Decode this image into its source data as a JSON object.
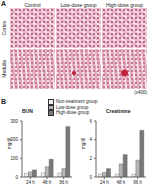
{
  "panel_a": {
    "label": "A",
    "columns": [
      "Control",
      "Low-dose group",
      "High-dose group"
    ],
    "rows": [
      "Cortex",
      "Medulla"
    ],
    "magnification": "(x400)"
  },
  "panel_b_label": "B",
  "chart_data": [
    {
      "type": "bar",
      "title": "BUN",
      "y_label": "mg/dl",
      "categories": [
        "24 h",
        "48 h",
        "96 h"
      ],
      "series": [
        {
          "name": "Non-treatment group",
          "color": "#eeeeee",
          "values": [
            20,
            22,
            21
          ]
        },
        {
          "name": "Low-dose group",
          "color": "#b5b5b5",
          "values": [
            28,
            55,
            45
          ]
        },
        {
          "name": "High-dose group",
          "color": "#7a7a7a",
          "values": [
            38,
            95,
            270
          ]
        }
      ],
      "ylim": [
        0,
        300
      ],
      "yticks": [
        0,
        100,
        200,
        300
      ]
    },
    {
      "type": "bar",
      "title": "Creatinine",
      "y_label": "mg/dl",
      "categories": [
        "24 h",
        "48 h",
        "96 h"
      ],
      "series": [
        {
          "name": "Non-treatment group",
          "color": "#eeeeee",
          "values": [
            0.3,
            0.3,
            0.3
          ]
        },
        {
          "name": "Low-dose group",
          "color": "#b5b5b5",
          "values": [
            0.5,
            1.4,
            1.8
          ]
        },
        {
          "name": "High-dose group",
          "color": "#7a7a7a",
          "values": [
            0.9,
            2.4,
            5
          ]
        }
      ],
      "ylim": [
        0,
        6
      ],
      "yticks": [
        0,
        2,
        4,
        6
      ]
    }
  ]
}
